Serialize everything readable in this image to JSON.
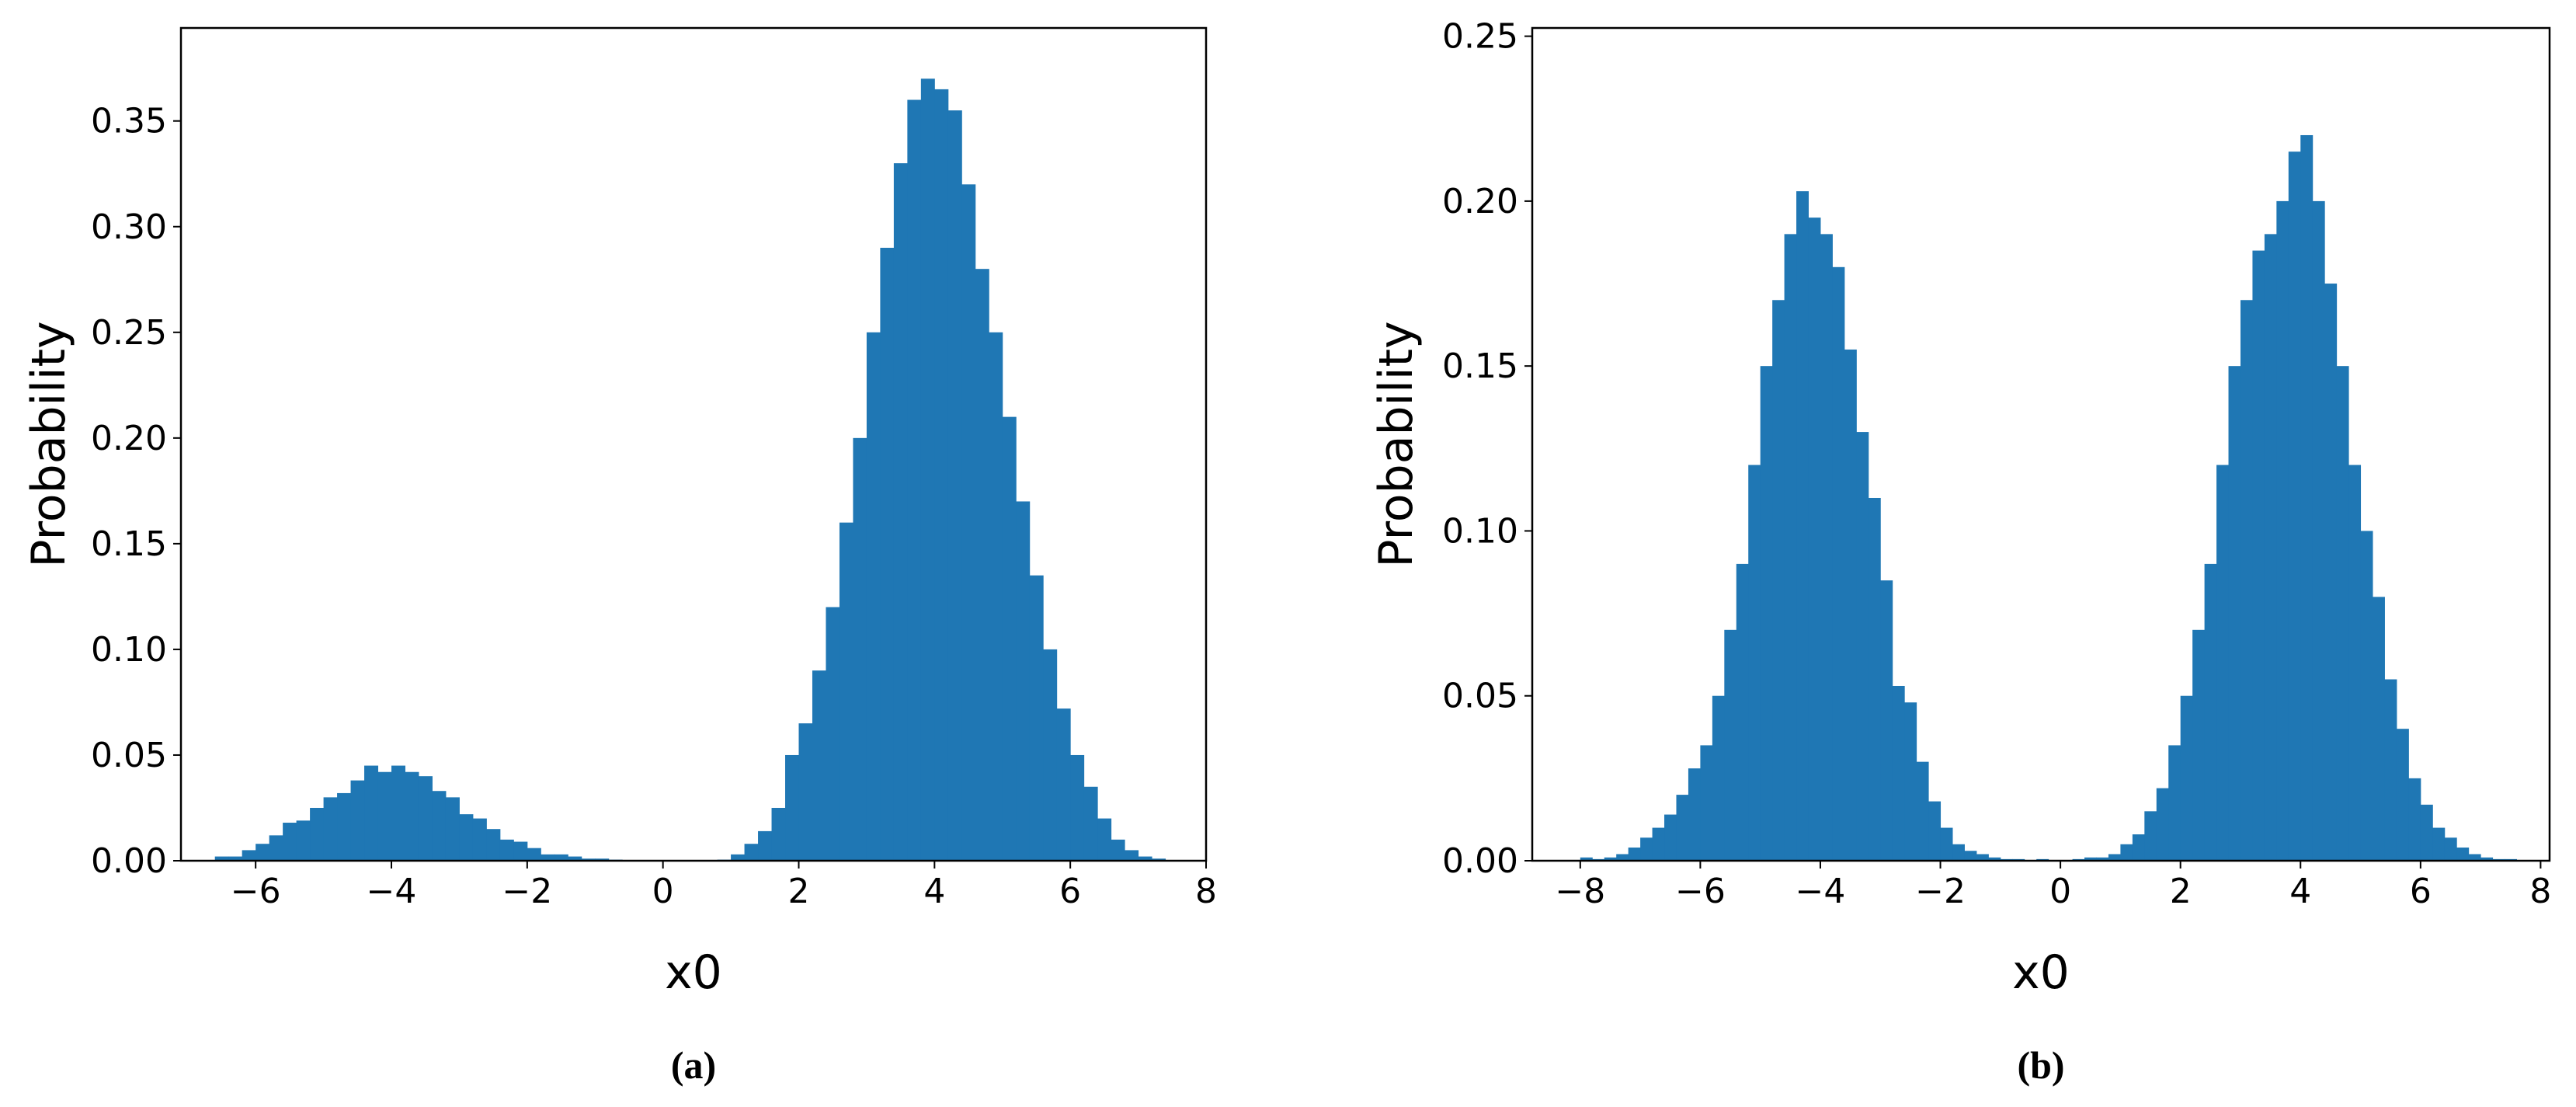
{
  "chart_data": [
    {
      "type": "histogram",
      "caption": "(a)",
      "xlabel": "x0",
      "ylabel": "Probability",
      "color": "#1f77b4",
      "bins": [
        -6.6,
        -6.4,
        -6.2,
        -6.0,
        -5.8,
        -5.6,
        -5.4,
        -5.2,
        -5.0,
        -4.8,
        -4.6,
        -4.4,
        -4.2,
        -4.0,
        -3.8,
        -3.6,
        -3.4,
        -3.2,
        -3.0,
        -2.8,
        -2.6,
        -2.4,
        -2.2,
        -2.0,
        -1.8,
        -1.6,
        -1.4,
        -1.2,
        -1.0,
        -0.8,
        -0.6,
        -0.4,
        -0.2,
        0.0,
        0.2,
        0.4,
        0.6,
        0.8,
        1.0,
        1.2,
        1.4,
        1.6,
        1.8,
        2.0,
        2.2,
        2.4,
        2.6,
        2.8,
        3.0,
        3.2,
        3.4,
        3.6,
        3.8,
        4.0,
        4.2,
        4.4,
        4.6,
        4.8,
        5.0,
        5.2,
        5.4,
        5.6,
        5.8,
        6.0,
        6.2,
        6.4,
        6.6,
        6.8,
        7.0,
        7.2,
        7.4
      ],
      "values": [
        0.002,
        0.002,
        0.005,
        0.008,
        0.012,
        0.018,
        0.019,
        0.025,
        0.03,
        0.032,
        0.038,
        0.045,
        0.042,
        0.045,
        0.042,
        0.04,
        0.033,
        0.03,
        0.022,
        0.02,
        0.015,
        0.01,
        0.009,
        0.006,
        0.003,
        0.003,
        0.002,
        0.001,
        0.001,
        0.0005,
        0,
        0,
        0,
        0,
        0,
        0,
        0,
        0.0005,
        0.003,
        0.008,
        0.014,
        0.025,
        0.05,
        0.065,
        0.09,
        0.12,
        0.16,
        0.2,
        0.25,
        0.29,
        0.33,
        0.36,
        0.37,
        0.365,
        0.355,
        0.32,
        0.28,
        0.25,
        0.21,
        0.17,
        0.135,
        0.1,
        0.072,
        0.05,
        0.035,
        0.02,
        0.01,
        0.005,
        0.002,
        0.001
      ],
      "xlim": [
        -7.1,
        8.0
      ],
      "ylim": [
        0,
        0.394
      ],
      "xticks": [
        {
          "value": -6,
          "label": "−6"
        },
        {
          "value": -4,
          "label": "−4"
        },
        {
          "value": -2,
          "label": "−2"
        },
        0,
        2,
        4,
        6,
        8
      ],
      "yticks": [
        {
          "value": 0,
          "label": "0.00"
        },
        0.05,
        {
          "value": 0.1,
          "label": "0.10"
        },
        0.15,
        {
          "value": 0.2,
          "label": "0.20"
        },
        0.25,
        {
          "value": 0.3,
          "label": "0.30"
        },
        0.35
      ]
    },
    {
      "type": "histogram",
      "caption": "(b)",
      "xlabel": "x0",
      "ylabel": "Probability",
      "color": "#1f77b4",
      "bins": [
        -8.0,
        -7.8,
        -7.6,
        -7.4,
        -7.2,
        -7.0,
        -6.8,
        -6.6,
        -6.4,
        -6.2,
        -6.0,
        -5.8,
        -5.6,
        -5.4,
        -5.2,
        -5.0,
        -4.8,
        -4.6,
        -4.4,
        -4.2,
        -4.0,
        -3.8,
        -3.6,
        -3.4,
        -3.2,
        -3.0,
        -2.8,
        -2.6,
        -2.4,
        -2.2,
        -2.0,
        -1.8,
        -1.6,
        -1.4,
        -1.2,
        -1.0,
        -0.8,
        -0.6,
        -0.4,
        -0.2,
        0.0,
        0.2,
        0.4,
        0.6,
        0.8,
        1.0,
        1.2,
        1.4,
        1.6,
        1.8,
        2.0,
        2.2,
        2.4,
        2.6,
        2.8,
        3.0,
        3.2,
        3.4,
        3.6,
        3.8,
        4.0,
        4.2,
        4.4,
        4.6,
        4.8,
        5.0,
        5.2,
        5.4,
        5.6,
        5.8,
        6.0,
        6.2,
        6.4,
        6.6,
        6.8,
        7.0,
        7.2,
        7.4,
        7.6
      ],
      "values": [
        0.001,
        0.0005,
        0.001,
        0.002,
        0.004,
        0.007,
        0.01,
        0.014,
        0.02,
        0.028,
        0.035,
        0.05,
        0.07,
        0.09,
        0.12,
        0.15,
        0.17,
        0.19,
        0.203,
        0.195,
        0.19,
        0.18,
        0.155,
        0.13,
        0.11,
        0.085,
        0.053,
        0.048,
        0.03,
        0.018,
        0.01,
        0.005,
        0.003,
        0.002,
        0.001,
        0.0005,
        0.0005,
        0,
        0.0005,
        0,
        0,
        0.0005,
        0.001,
        0.001,
        0.002,
        0.005,
        0.008,
        0.015,
        0.022,
        0.035,
        0.05,
        0.07,
        0.09,
        0.12,
        0.15,
        0.17,
        0.185,
        0.19,
        0.2,
        0.215,
        0.22,
        0.2,
        0.175,
        0.15,
        0.12,
        0.1,
        0.08,
        0.055,
        0.04,
        0.025,
        0.017,
        0.01,
        0.007,
        0.004,
        0.002,
        0.001,
        0.0005,
        0.0005
      ],
      "xlim": [
        -8.8,
        8.15
      ],
      "ylim": [
        0,
        0.2525
      ],
      "xticks": [
        {
          "value": -8,
          "label": "−8"
        },
        {
          "value": -6,
          "label": "−6"
        },
        {
          "value": -4,
          "label": "−4"
        },
        {
          "value": -2,
          "label": "−2"
        },
        0,
        2,
        4,
        6,
        8
      ],
      "yticks": [
        {
          "value": 0,
          "label": "0.00"
        },
        0.05,
        {
          "value": 0.1,
          "label": "0.10"
        },
        0.15,
        {
          "value": 0.2,
          "label": "0.20"
        },
        0.25
      ]
    }
  ]
}
